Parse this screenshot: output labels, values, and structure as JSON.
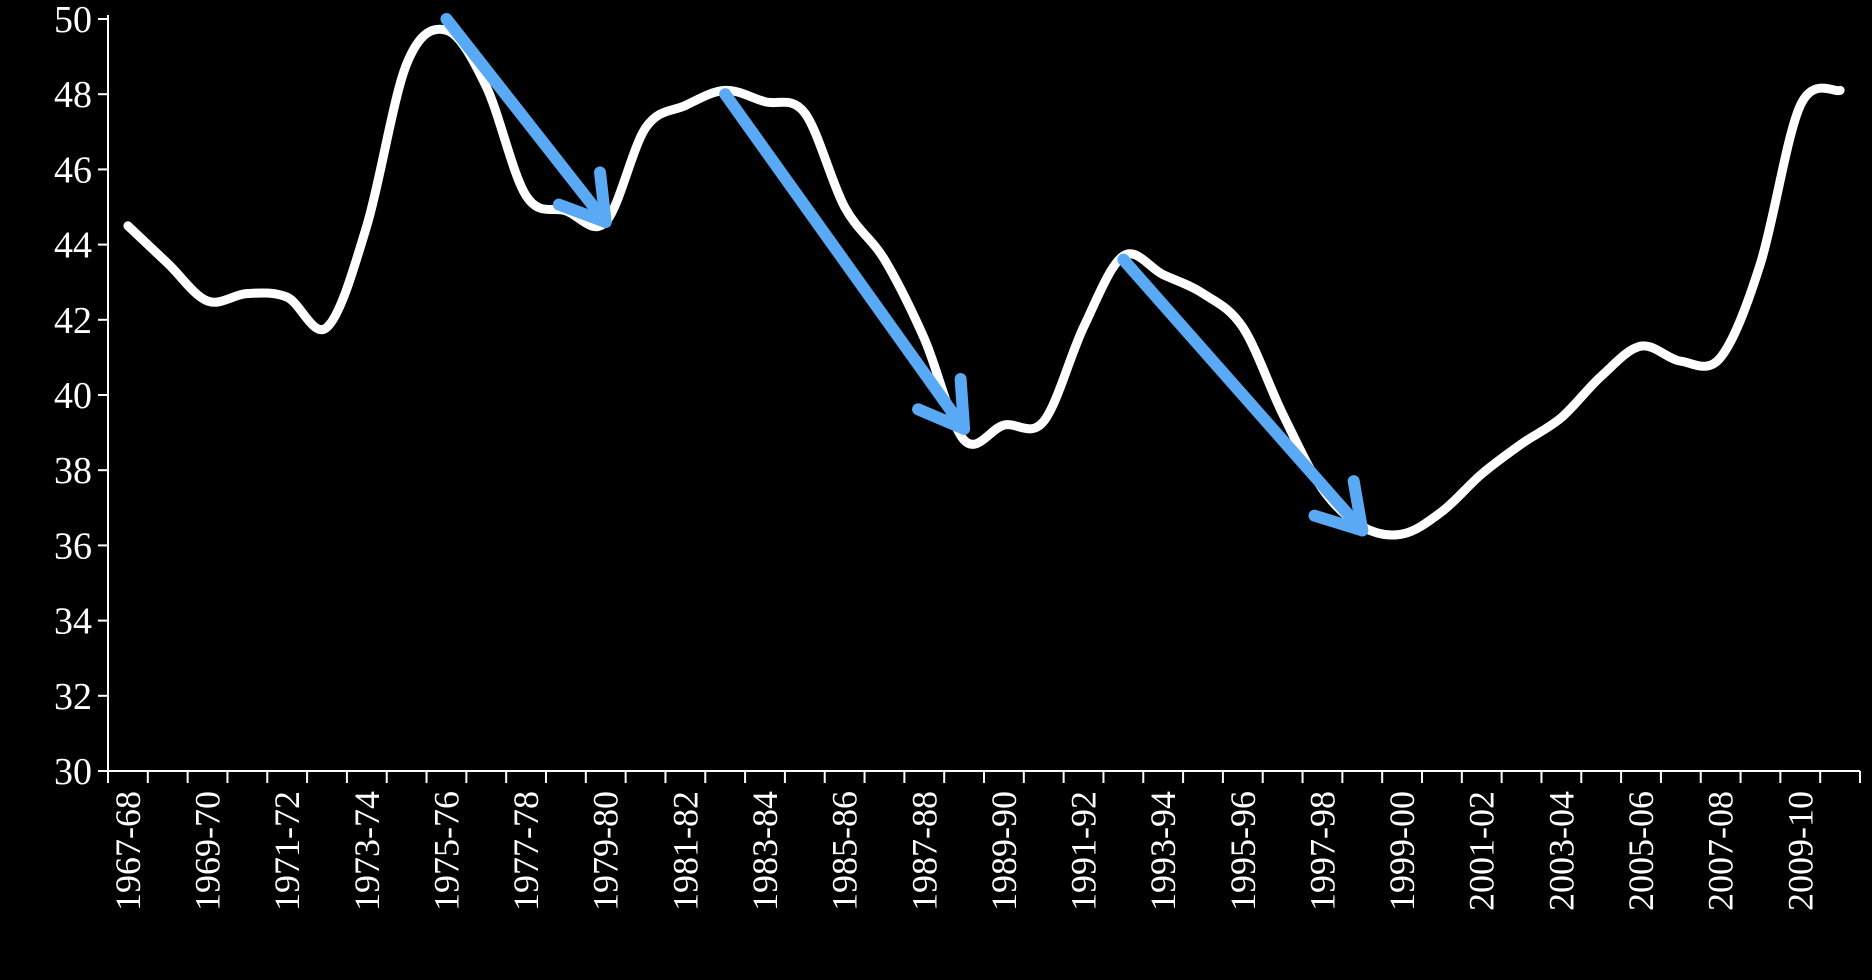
{
  "colors": {
    "background": "#000000",
    "line": "#ffffff",
    "arrow": "#5aa9f5",
    "axis": "#ffffff"
  },
  "chart_data": {
    "type": "line",
    "title": "",
    "xlabel": "",
    "ylabel": "",
    "ylim": [
      30,
      50
    ],
    "yticks": [
      30,
      32,
      34,
      36,
      38,
      40,
      42,
      44,
      46,
      48,
      50
    ],
    "grid": false,
    "legend": "none",
    "x": [
      "1967-68",
      "1968-69",
      "1969-70",
      "1970-71",
      "1971-72",
      "1972-73",
      "1973-74",
      "1974-75",
      "1975-76",
      "1976-77",
      "1977-78",
      "1978-79",
      "1979-80",
      "1980-81",
      "1981-82",
      "1982-83",
      "1983-84",
      "1984-85",
      "1985-86",
      "1986-87",
      "1987-88",
      "1988-89",
      "1989-90",
      "1990-91",
      "1991-92",
      "1992-93",
      "1993-94",
      "1994-95",
      "1995-96",
      "1996-97",
      "1997-98",
      "1998-99",
      "1999-00",
      "2000-01",
      "2001-02",
      "2002-03",
      "2003-04",
      "2004-05",
      "2005-06",
      "2006-07",
      "2007-08",
      "2008-09",
      "2009-10",
      "2010-11"
    ],
    "x_tick_labels": [
      "1967-68",
      "1969-70",
      "1971-72",
      "1973-74",
      "1975-76",
      "1977-78",
      "1979-80",
      "1981-82",
      "1983-84",
      "1985-86",
      "1987-88",
      "1989-90",
      "1991-92",
      "1993-94",
      "1995-96",
      "1997-98",
      "1999-00",
      "2001-02",
      "2003-04",
      "2005-06",
      "2007-08",
      "2009-10"
    ],
    "series": [
      {
        "values": [
          44.5,
          43.5,
          42.5,
          42.7,
          42.6,
          41.8,
          44.5,
          48.8,
          49.7,
          48.2,
          45.3,
          44.9,
          44.6,
          47.1,
          47.7,
          48.1,
          47.8,
          47.5,
          45.0,
          43.6,
          41.5,
          38.8,
          39.2,
          39.3,
          41.8,
          43.7,
          43.2,
          42.7,
          41.8,
          39.5,
          37.5,
          36.5,
          36.3,
          36.9,
          37.9,
          38.7,
          39.4,
          40.5,
          41.3,
          40.9,
          41.0,
          43.5,
          47.7,
          48.1
        ]
      }
    ],
    "annotations": [
      {
        "type": "arrow",
        "from": [
          "1975-76",
          50.0
        ],
        "to": [
          "1979-80",
          44.6
        ]
      },
      {
        "type": "arrow",
        "from": [
          "1982-83",
          48.0
        ],
        "to": [
          "1988-89",
          39.1
        ]
      },
      {
        "type": "arrow",
        "from": [
          "1992-93",
          43.6
        ],
        "to": [
          "1998-99",
          36.4
        ]
      }
    ]
  }
}
